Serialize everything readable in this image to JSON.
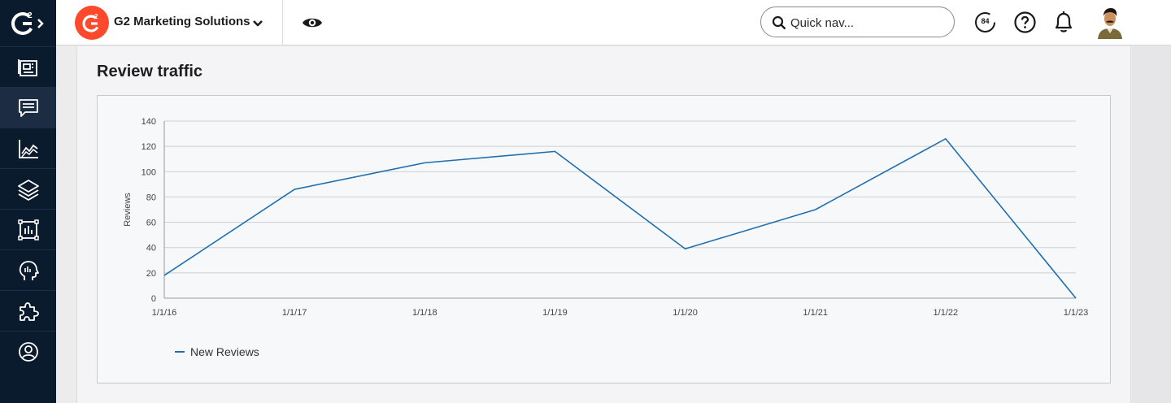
{
  "app": {
    "org_name": "G2 Marketing Solutions",
    "quick_nav_placeholder": "Quick nav...",
    "score": "84"
  },
  "rail": {
    "items": [
      "dashboard-icon",
      "reviews-icon",
      "analytics-icon",
      "layers-icon",
      "reports-icon",
      "insights-icon",
      "integrations-icon",
      "account-icon"
    ],
    "active_index": 1
  },
  "section": {
    "title": "Review traffic"
  },
  "colors": {
    "line": "#1f6fb0",
    "accent": "#ff492c",
    "rail": "#0b1b2e"
  },
  "chart_data": {
    "type": "line",
    "title": "",
    "xlabel": "",
    "ylabel": "Reviews",
    "ylim": [
      0,
      140
    ],
    "yticks": [
      0,
      20,
      40,
      60,
      80,
      100,
      120,
      140
    ],
    "x": [
      "1/1/16",
      "1/1/17",
      "1/1/18",
      "1/1/19",
      "1/1/20",
      "1/1/21",
      "1/1/22",
      "1/1/23"
    ],
    "series": [
      {
        "name": "New Reviews",
        "values": [
          18,
          86,
          107,
          116,
          39,
          70,
          126,
          0
        ]
      }
    ],
    "grid": true,
    "legend": "bottom-left"
  }
}
